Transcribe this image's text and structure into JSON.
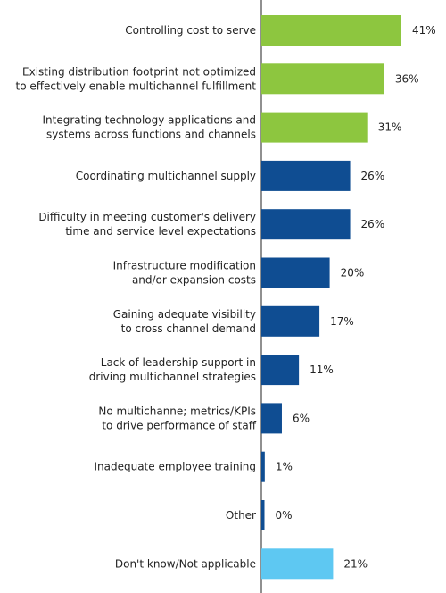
{
  "chart_data": {
    "type": "bar",
    "orientation": "horizontal",
    "categories": [
      [
        "Controlling cost to serve"
      ],
      [
        "Existing distribution footprint not optimized",
        "to effectively enable multichannel fulfillment"
      ],
      [
        "Integrating technology applications and",
        "systems across functions and channels"
      ],
      [
        "Coordinating multichannel supply"
      ],
      [
        "Difficulty in meeting customer's delivery",
        "time and service level expectations"
      ],
      [
        "Infrastructure modification",
        "and/or expansion costs"
      ],
      [
        "Gaining adequate visibility",
        "to cross channel demand"
      ],
      [
        "Lack of leadership support in",
        "driving multichannel strategies"
      ],
      [
        "No multichanne; metrics/KPIs",
        "to drive performance of staff"
      ],
      [
        "Inadequate employee training"
      ],
      [
        "Other"
      ],
      [
        "Don't know/Not applicable"
      ]
    ],
    "values": [
      41,
      36,
      31,
      26,
      26,
      20,
      17,
      11,
      6,
      1,
      0,
      21
    ],
    "value_labels": [
      "41%",
      "36%",
      "31%",
      "26%",
      "26%",
      "20%",
      "17%",
      "11%",
      "6%",
      "1%",
      "0%",
      "21%"
    ],
    "bar_colors": [
      "#8dc63f",
      "#8dc63f",
      "#8dc63f",
      "#0f4d92",
      "#0f4d92",
      "#0f4d92",
      "#0f4d92",
      "#0f4d92",
      "#0f4d92",
      "#0f4d92",
      "#0f4d92",
      "#5ec8f2"
    ],
    "xlim": [
      0,
      41
    ],
    "grid": false,
    "legend": "none"
  },
  "colors": {
    "top_drivers": "#8dc63f",
    "other_drivers": "#0f4d92",
    "dont_know": "#5ec8f2",
    "axis": "#222222"
  }
}
